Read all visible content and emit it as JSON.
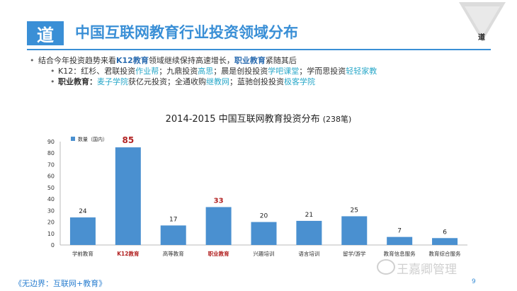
{
  "header": {
    "logo": "道",
    "title": "中国互联网教育行业投资领域分布",
    "funnel_label": "道"
  },
  "bullets": {
    "main": {
      "pre": "结合今年投资趋势来看",
      "k12": "K12教育",
      "mid": "领域继续保持高速增长，",
      "voc": "职业教育",
      "post": "紧随其后"
    },
    "k12_line": {
      "label": "K12：",
      "t1": "红杉、君联投资",
      "l1": "作业帮",
      "t2": "；九鼎投资",
      "l2": "高思",
      "t3": "；晨是创投投资",
      "l3": "学吧课堂",
      "t4": "；学而思投资",
      "l4": "轻轻家教"
    },
    "voc_line": {
      "label": "职业教育：",
      "l1": "麦子学院",
      "t1": "获亿元投资；全通收购",
      "l2": "继教网",
      "t2": "；蓝驰创投投资",
      "l3": "极客学院"
    }
  },
  "chart_data": {
    "type": "bar",
    "title": "2014-2015  中国互联网教育投资分布",
    "subtitle": "(238笔)",
    "legend": "数量（国内）",
    "categories": [
      "学前教育",
      "K12教育",
      "高等教育",
      "职业教育",
      "兴趣培训",
      "语言培训",
      "留学/游学",
      "教育信息服务",
      "教育综合服务"
    ],
    "values": [
      24,
      85,
      17,
      33,
      20,
      21,
      25,
      7,
      6
    ],
    "highlight": [
      1,
      3
    ],
    "ylim": [
      0,
      90
    ],
    "yticks": [
      "0",
      "10",
      "20",
      "30",
      "40",
      "50",
      "60",
      "70",
      "80",
      "90"
    ],
    "bar_color": "#4a90d0",
    "highlight_color": "#b22222"
  },
  "footer": {
    "left": "《无边界：互联网+教育》",
    "page": "9",
    "watermark": "王嘉卿管理"
  }
}
